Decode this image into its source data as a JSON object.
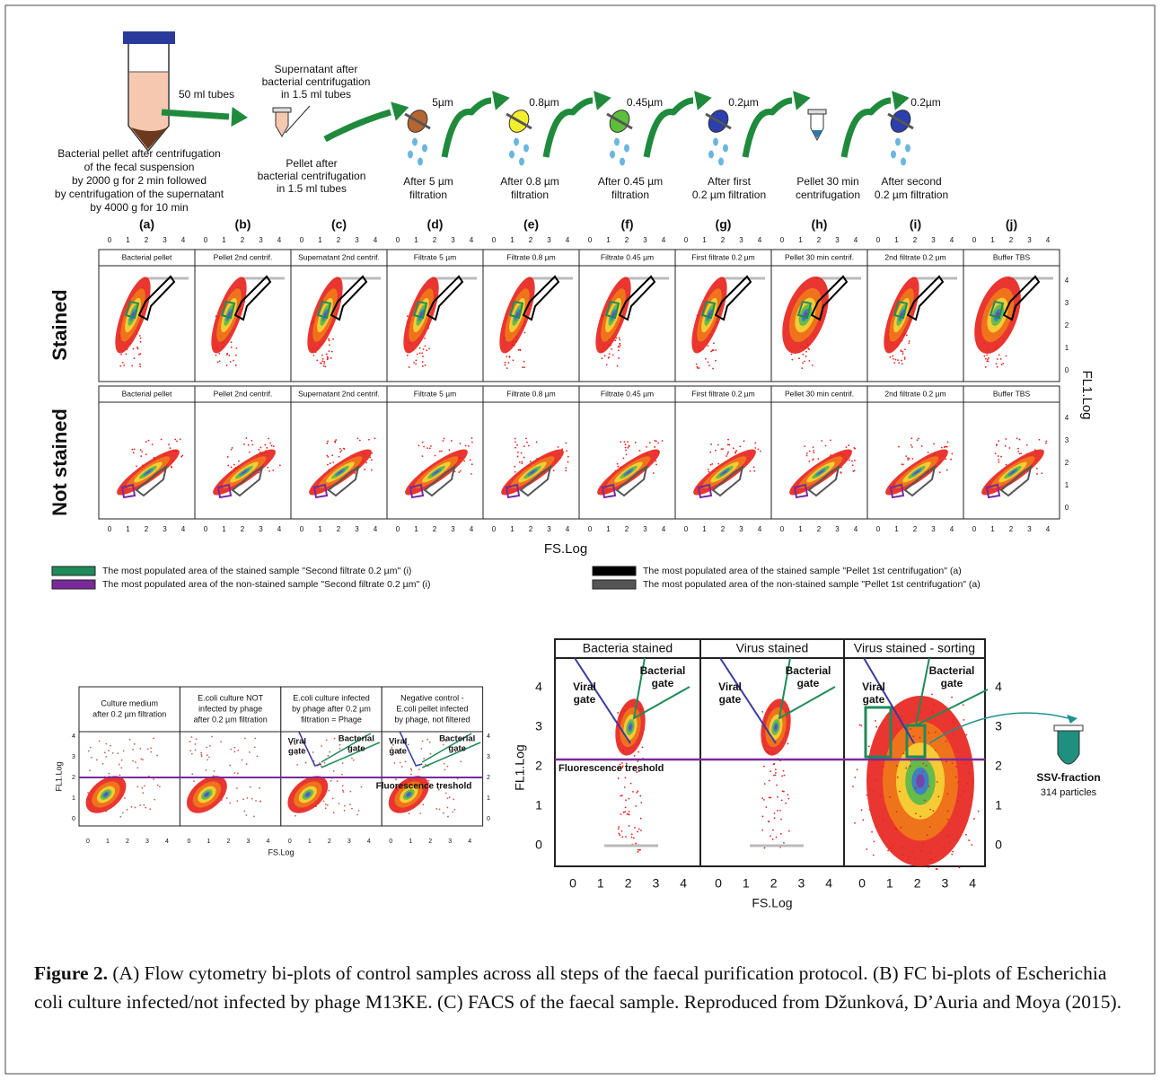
{
  "protocol": {
    "tube_label": "50 ml tubes",
    "pellet_caption": [
      "Bacterial pellet after centrifugation",
      "of the fecal suspension",
      "by 2000 g for 2 min followed",
      "by centrifugation of the supernatant",
      "by 4000 g for 10 min"
    ],
    "supernatant_caption": [
      "Supernatant after",
      "bacterial centrifugation",
      "in 1.5 ml tubes"
    ],
    "small_pellet_caption": [
      "Pellet after",
      "bacterial centrifugation",
      "in 1.5 ml tubes"
    ],
    "steps": [
      {
        "filter": "5µm",
        "caption": [
          "After 5 µm",
          "filtration"
        ]
      },
      {
        "filter": "0.8µm",
        "caption": [
          "After 0.8 µm",
          "filtration"
        ]
      },
      {
        "filter": "0.45µm",
        "caption": [
          "After 0.45 µm",
          "filtration"
        ]
      },
      {
        "filter": "0.2µm",
        "caption": [
          "After first",
          "0.2 µm filtration"
        ]
      },
      {
        "caption": [
          "Pellet 30 min",
          "centrifugation"
        ]
      },
      {
        "filter": "0.2µm",
        "caption": [
          "After second",
          "0.2 µm filtration"
        ]
      }
    ]
  },
  "panel_a": {
    "letters": [
      "(a)",
      "(b)",
      "(c)",
      "(d)",
      "(e)",
      "(f)",
      "(g)",
      "(h)",
      "(i)",
      "(j)"
    ],
    "titles_stained": [
      "Bacterial pellet",
      "Pellet 2nd centrif.",
      "Supernatant 2nd centrif.",
      "Filtrate 5 µm",
      "Filtrate 0.8 µm",
      "Filtrate 0.45 µm",
      "First filtrate 0.2 µm",
      "Pellet 30 min centrif.",
      "2nd filtrate 0.2 µm",
      "Buffer TBS"
    ],
    "titles_not_stained": [
      "Bacterial pellet",
      "Pellet 2nd centrif.",
      "Supernatant 2nd centrif.",
      "Filtrate 5 µm",
      "Filtrate 0.8 µm",
      "Filtrate 0.45 µm",
      "First filtrate 0.2 µm",
      "Pellet 30 min centrif.",
      "2nd filtrate 0.2 µm",
      "Buffer TBS"
    ],
    "row_labels": [
      "Stained",
      "Not stained"
    ],
    "x_label": "FS.Log",
    "y_label": "FL1.Log",
    "ticks": [
      0,
      1,
      2,
      3,
      4
    ],
    "legend": [
      "The most populated area of the stained sample \"Second filtrate 0.2 µm\" (i)",
      "The most populated area of the non-stained sample \"Second filtrate 0.2 µm\" (i)",
      "The most populated area of the stained sample \"Pellet 1st centrifugation\" (a)",
      "The most populated area of the non-stained sample \"Pellet 1st centrifugation\" (a)"
    ]
  },
  "panel_b": {
    "titles": [
      [
        "Culture medium",
        "after 0.2 µm filtration"
      ],
      [
        "E.coli culture NOT",
        "infected by phage",
        "after 0.2 µm filtration"
      ],
      [
        "E.coli culture infected",
        "by phage after 0.2 µm",
        "filtration = Phage"
      ],
      [
        "Negative control -",
        "E.coli pellet infected",
        "by phage, not filtered"
      ]
    ],
    "viral_gate": [
      "Viral",
      "gate"
    ],
    "bacterial_gate": [
      "Bacterial",
      "gate"
    ],
    "threshold": "Fluorescence treshold",
    "x_label": "FS.Log",
    "y_label": "FL1.Log",
    "ticks": [
      0,
      1,
      2,
      3,
      4
    ]
  },
  "panel_c": {
    "titles": [
      "Bacteria stained",
      "Virus stained",
      "Virus stained - sorting"
    ],
    "viral_gate": [
      "Viral",
      "gate"
    ],
    "bacterial_gate": [
      "Bacterial",
      "gate"
    ],
    "threshold": "Fluorescence treshold",
    "x_label": "FS.Log",
    "y_label": "FL1.Log",
    "ticks": [
      0,
      1,
      2,
      3,
      4
    ],
    "sorted_fraction": "SSV-fraction",
    "sorted_count": "314 particles"
  },
  "caption": {
    "label": "Figure 2.",
    "text": " (A) Flow cytometry bi-plots of control samples across all steps of the faecal purification protocol. (B) FC bi-plots of Escherichia coli culture infected/not infected by phage M13KE. (C) FACS of the faecal sample. Reproduced from Džunková, D’Auria and Moya (2015)."
  }
}
